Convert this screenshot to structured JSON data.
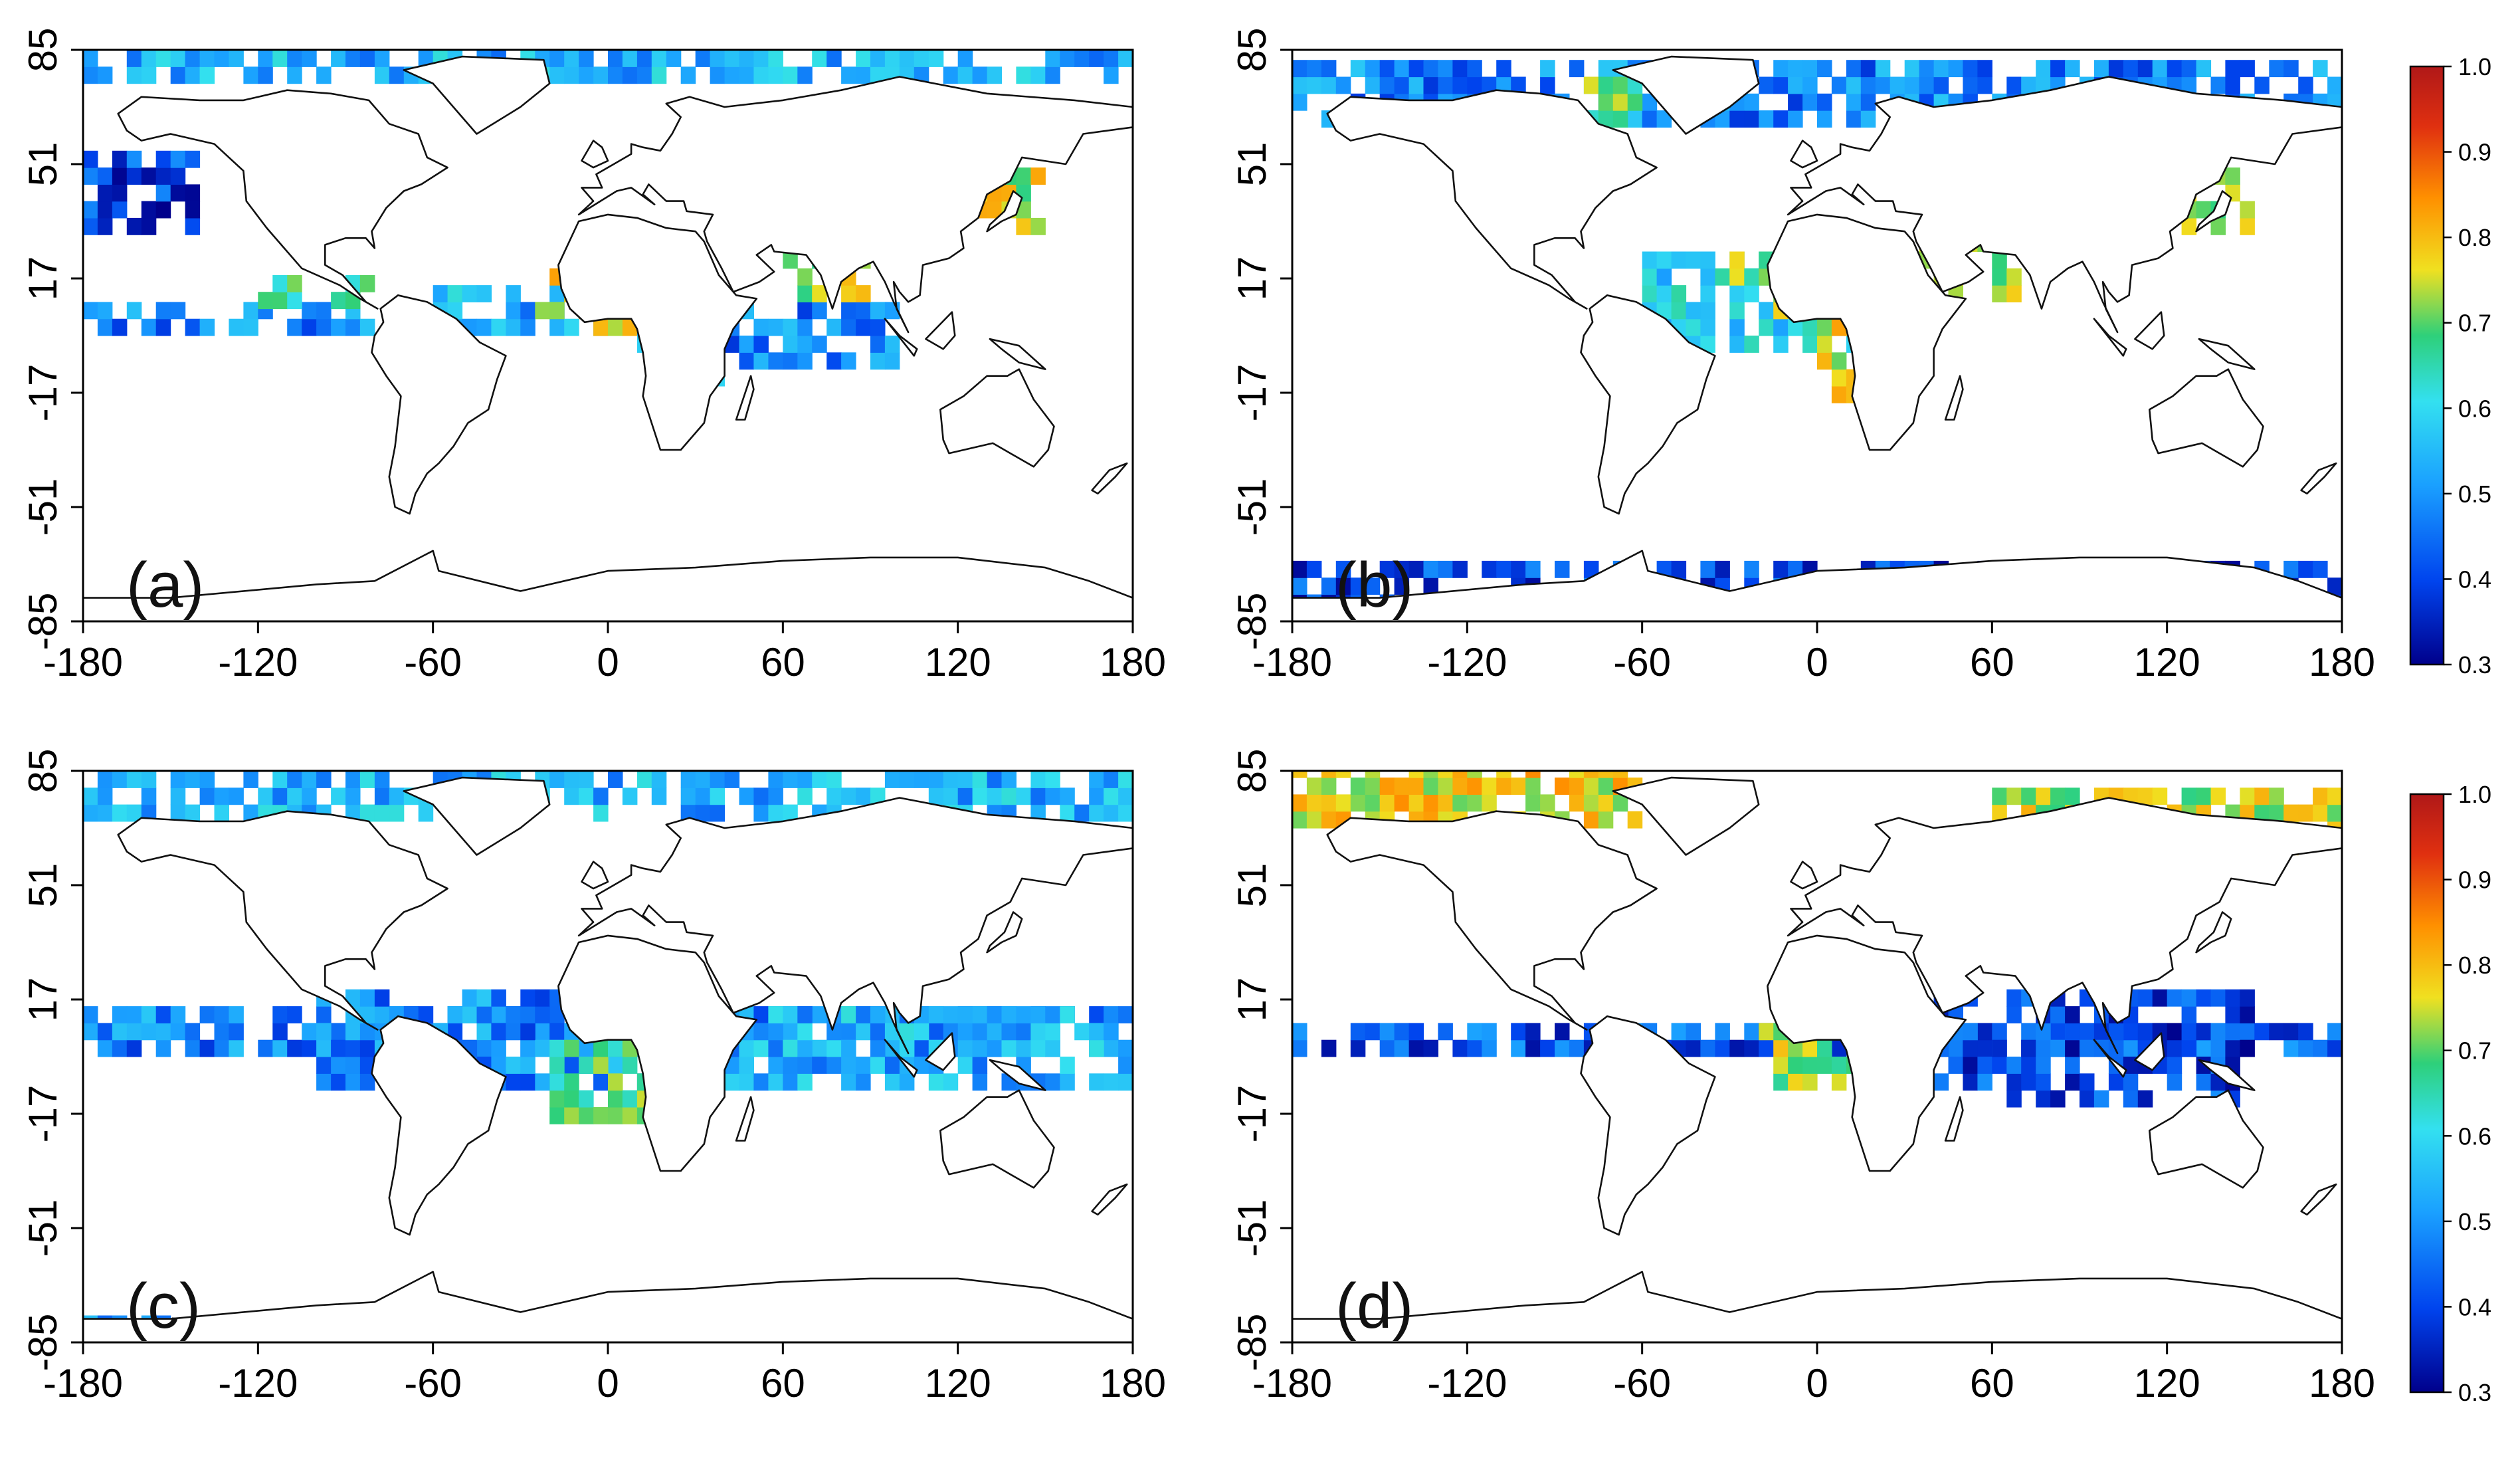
{
  "figure": {
    "panels": [
      {
        "id": "a",
        "label": "(a)"
      },
      {
        "id": "b",
        "label": "(b)"
      },
      {
        "id": "c",
        "label": "(c)"
      },
      {
        "id": "d",
        "label": "(d)"
      }
    ],
    "x_ticks": [
      "-180",
      "-120",
      "-60",
      "0",
      "60",
      "120",
      "180"
    ],
    "y_ticks": [
      "85",
      "51",
      "17",
      "-17",
      "-51",
      "-85"
    ],
    "colorbars": [
      {
        "id": "top",
        "ticks": [
          "1.0",
          "0.9",
          "0.8",
          "0.7",
          "0.6",
          "0.5",
          "0.4",
          "0.3"
        ]
      },
      {
        "id": "bottom",
        "ticks": [
          "1.0",
          "0.9",
          "0.8",
          "0.7",
          "0.6",
          "0.5",
          "0.4",
          "0.3"
        ]
      }
    ],
    "colormap": [
      "#00008b",
      "#0044ee",
      "#1aa0ff",
      "#33e0f0",
      "#2ed07a",
      "#f0e020",
      "#ff9000",
      "#e03010",
      "#b01818"
    ]
  },
  "chart_data": [
    {
      "type": "heatmap",
      "panel": "a",
      "x": [
        -180,
        -120,
        -60,
        0,
        60,
        120,
        180
      ],
      "y": [
        85,
        51,
        17,
        -17,
        -51,
        -85
      ],
      "xlim": [
        -180,
        180
      ],
      "ylim": [
        -85,
        85
      ],
      "value_range": [
        0.3,
        1.0
      ],
      "regions": [
        {
          "lon": [
            -180,
            180
          ],
          "lat": [
            75,
            85
          ],
          "value": 0.5
        },
        {
          "lon": [
            -180,
            -140
          ],
          "lat": [
            30,
            55
          ],
          "value": 0.38
        },
        {
          "lon": [
            -180,
            -80
          ],
          "lat": [
            0,
            10
          ],
          "value": 0.45
        },
        {
          "lon": [
            -120,
            -80
          ],
          "lat": [
            8,
            18
          ],
          "value": 0.62
        },
        {
          "lon": [
            -60,
            0
          ],
          "lat": [
            0,
            15
          ],
          "value": 0.5
        },
        {
          "lon": [
            -25,
            10
          ],
          "lat": [
            0,
            18
          ],
          "value": 0.75
        },
        {
          "lon": [
            10,
            40
          ],
          "lat": [
            -15,
            5
          ],
          "value": 0.5
        },
        {
          "lon": [
            40,
            100
          ],
          "lat": [
            -10,
            10
          ],
          "value": 0.45
        },
        {
          "lon": [
            60,
            90
          ],
          "lat": [
            10,
            25
          ],
          "value": 0.7
        },
        {
          "lon": [
            125,
            150
          ],
          "lat": [
            30,
            50
          ],
          "value": 0.72
        }
      ]
    },
    {
      "type": "heatmap",
      "panel": "b",
      "x": [
        -180,
        -120,
        -60,
        0,
        60,
        120,
        180
      ],
      "y": [
        85,
        51,
        17,
        -17,
        -51,
        -85
      ],
      "xlim": [
        -180,
        180
      ],
      "ylim": [
        -85,
        85
      ],
      "value_range": [
        0.3,
        1.0
      ],
      "regions": [
        {
          "lon": [
            -180,
            180
          ],
          "lat": [
            62,
            82
          ],
          "value": 0.45
        },
        {
          "lon": [
            -80,
            -60
          ],
          "lat": [
            62,
            75
          ],
          "value": 0.65
        },
        {
          "lon": [
            -60,
            20
          ],
          "lat": [
            -5,
            25
          ],
          "value": 0.55
        },
        {
          "lon": [
            -30,
            0
          ],
          "lat": [
            5,
            25
          ],
          "value": 0.68
        },
        {
          "lon": [
            0,
            30
          ],
          "lat": [
            -20,
            5
          ],
          "value": 0.75
        },
        {
          "lon": [
            20,
            70
          ],
          "lat": [
            10,
            30
          ],
          "value": 0.7
        },
        {
          "lon": [
            120,
            150
          ],
          "lat": [
            30,
            50
          ],
          "value": 0.7
        },
        {
          "lon": [
            -180,
            180
          ],
          "lat": [
            -82,
            -68
          ],
          "value": 0.38
        }
      ]
    },
    {
      "type": "heatmap",
      "panel": "c",
      "x": [
        -180,
        -120,
        -60,
        0,
        60,
        120,
        180
      ],
      "y": [
        85,
        51,
        17,
        -17,
        -51,
        -85
      ],
      "xlim": [
        -180,
        180
      ],
      "ylim": [
        -85,
        85
      ],
      "value_range": [
        0.3,
        1.0
      ],
      "regions": [
        {
          "lon": [
            -180,
            180
          ],
          "lat": [
            70,
            85
          ],
          "value": 0.5
        },
        {
          "lon": [
            -180,
            180
          ],
          "lat": [
            0,
            12
          ],
          "value": 0.45
        },
        {
          "lon": [
            -100,
            20
          ],
          "lat": [
            -10,
            20
          ],
          "value": 0.45
        },
        {
          "lon": [
            -20,
            20
          ],
          "lat": [
            -20,
            5
          ],
          "value": 0.65
        },
        {
          "lon": [
            40,
            180
          ],
          "lat": [
            -10,
            15
          ],
          "value": 0.5
        },
        {
          "lon": [
            -180,
            -150
          ],
          "lat": [
            -82,
            -78
          ],
          "value": 0.5
        }
      ]
    },
    {
      "type": "heatmap",
      "panel": "d",
      "x": [
        -180,
        -120,
        -60,
        0,
        60,
        120,
        180
      ],
      "y": [
        85,
        51,
        17,
        -17,
        -51,
        -85
      ],
      "xlim": [
        -180,
        180
      ],
      "ylim": [
        -85,
        85
      ],
      "value_range": [
        0.3,
        1.0
      ],
      "regions": [
        {
          "lon": [
            -180,
            -60
          ],
          "lat": [
            68,
            85
          ],
          "value": 0.75
        },
        {
          "lon": [
            60,
            180
          ],
          "lat": [
            60,
            80
          ],
          "value": 0.72
        },
        {
          "lon": [
            -180,
            180
          ],
          "lat": [
            0,
            10
          ],
          "value": 0.4
        },
        {
          "lon": [
            -20,
            20
          ],
          "lat": [
            -10,
            8
          ],
          "value": 0.7
        },
        {
          "lon": [
            40,
            150
          ],
          "lat": [
            -15,
            20
          ],
          "value": 0.38
        }
      ]
    }
  ]
}
